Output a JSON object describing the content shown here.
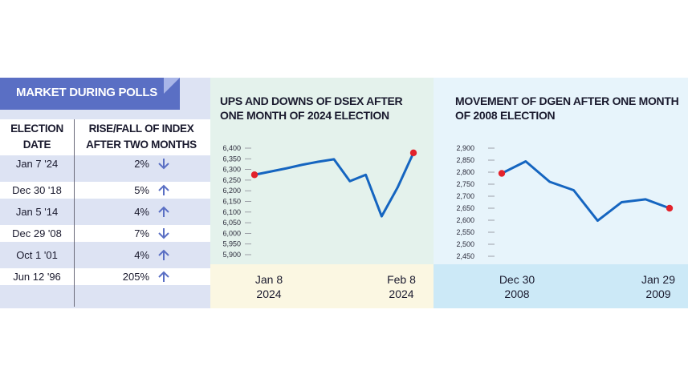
{
  "table": {
    "title": "MARKET DURING POLLS",
    "header_date": [
      "ELECTION",
      "DATE"
    ],
    "header_rise": [
      "RISE/FALL OF INDEX",
      "AFTER TWO MONTHS"
    ],
    "rows": [
      {
        "date": "Jan 7 '24",
        "value": "2%",
        "direction": "down"
      },
      {
        "date": "Dec 30 '18",
        "value": "5%",
        "direction": "up"
      },
      {
        "date": "Jan 5 '14",
        "value": "4%",
        "direction": "up"
      },
      {
        "date": "Dec 29 '08",
        "value": "7%",
        "direction": "down"
      },
      {
        "date": "Oct 1 '01",
        "value": "4%",
        "direction": "up"
      },
      {
        "date": "Jun 12 '96",
        "value": "205%",
        "direction": "up"
      }
    ]
  },
  "colors": {
    "banner": "#5a6fc4",
    "arrow": "#5a6fc4",
    "line": "#1565c0",
    "marker": "#e3222b"
  },
  "chart_data": [
    {
      "type": "line",
      "title": "UPS AND DOWNS OF DSEX AFTER ONE MONTH OF 2024 ELECTION",
      "yticks": [
        5900,
        5950,
        6000,
        6050,
        6100,
        6150,
        6200,
        6250,
        6300,
        6350,
        6400
      ],
      "ytick_labels": [
        "5,900",
        "5,950",
        "6,000",
        "6,050",
        "6,100",
        "6,150",
        "6,200",
        "6,250",
        "6,300",
        "6,350",
        "6,400"
      ],
      "ylim": [
        5900,
        6400
      ],
      "x_labels": [
        [
          "Jan 8",
          "2024"
        ],
        [
          "Feb 8",
          "2024"
        ]
      ],
      "series": [
        {
          "values": [
            6275,
            6290,
            6305,
            6322,
            6336,
            6348,
            6245,
            6275,
            6080,
            6215,
            6378
          ]
        }
      ],
      "grid": false,
      "markers": "endpoints"
    },
    {
      "type": "line",
      "title": "MOVEMENT OF DGEN AFTER ONE MONTH OF 2008 ELECTION",
      "yticks": [
        2450,
        2500,
        2550,
        2600,
        2650,
        2700,
        2750,
        2800,
        2850,
        2900
      ],
      "ytick_labels": [
        "2,450",
        "2,500",
        "2,550",
        "2,600",
        "2,650",
        "2,700",
        "2,750",
        "2,800",
        "2,850",
        "2,900"
      ],
      "ylim": [
        2450,
        2900
      ],
      "x_labels": [
        [
          "Dec 30",
          "2008"
        ],
        [
          "Jan 29",
          "2009"
        ]
      ],
      "series": [
        {
          "values": [
            2795,
            2845,
            2760,
            2725,
            2598,
            2675,
            2687,
            2650
          ]
        }
      ],
      "grid": false,
      "markers": "endpoints"
    }
  ]
}
